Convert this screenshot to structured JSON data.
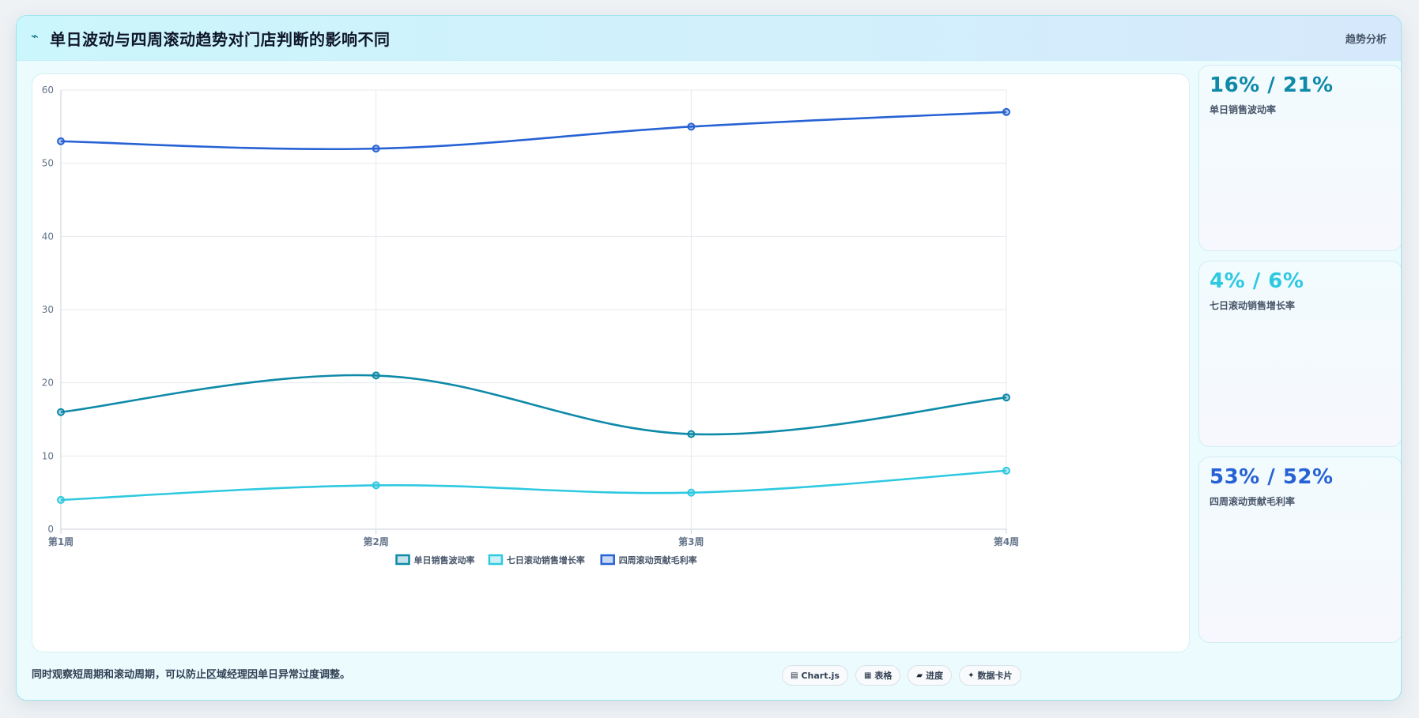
{
  "header": {
    "icon": "trend-wave-icon",
    "title": "单日波动与四周滚动趋势对门店判断的影响不同",
    "tag": "趋势分析"
  },
  "chart_data": {
    "type": "line",
    "categories": [
      "第1周",
      "第2周",
      "第3周",
      "第4周"
    ],
    "ylim": [
      0,
      60
    ],
    "yticks": [
      0,
      10,
      20,
      30,
      40,
      50,
      60
    ],
    "grid": true,
    "legend_position": "bottom",
    "series": [
      {
        "name": "单日销售波动率",
        "values": [
          16,
          21,
          13,
          18
        ],
        "color": "#0e8aa8"
      },
      {
        "name": "七日滚动销售增长率",
        "values": [
          4,
          6,
          5,
          8
        ],
        "color": "#2ec9e0"
      },
      {
        "name": "四周滚动贡献毛利率",
        "values": [
          53,
          52,
          55,
          57
        ],
        "color": "#2762d4"
      }
    ]
  },
  "kpis": [
    {
      "value": "16% / 21%",
      "label": "单日销售波动率",
      "color": "#0e8aa8"
    },
    {
      "value": "4% / 6%",
      "label": "七日滚动销售增长率",
      "color": "#2ec9e0"
    },
    {
      "value": "53% / 52%",
      "label": "四周滚动贡献毛利率",
      "color": "#2762d4"
    }
  ],
  "footer": {
    "note": "同时观察短周期和滚动周期，可以防止区域经理因单日异常过度调整。",
    "chips": [
      {
        "icon": "chart-icon",
        "glyph": "▤",
        "label": "Chart.js"
      },
      {
        "icon": "table-icon",
        "glyph": "▦",
        "label": "表格"
      },
      {
        "icon": "progress-icon",
        "glyph": "▰",
        "label": "进度"
      },
      {
        "icon": "sparkle-icon",
        "glyph": "✦",
        "label": "数据卡片"
      }
    ]
  }
}
